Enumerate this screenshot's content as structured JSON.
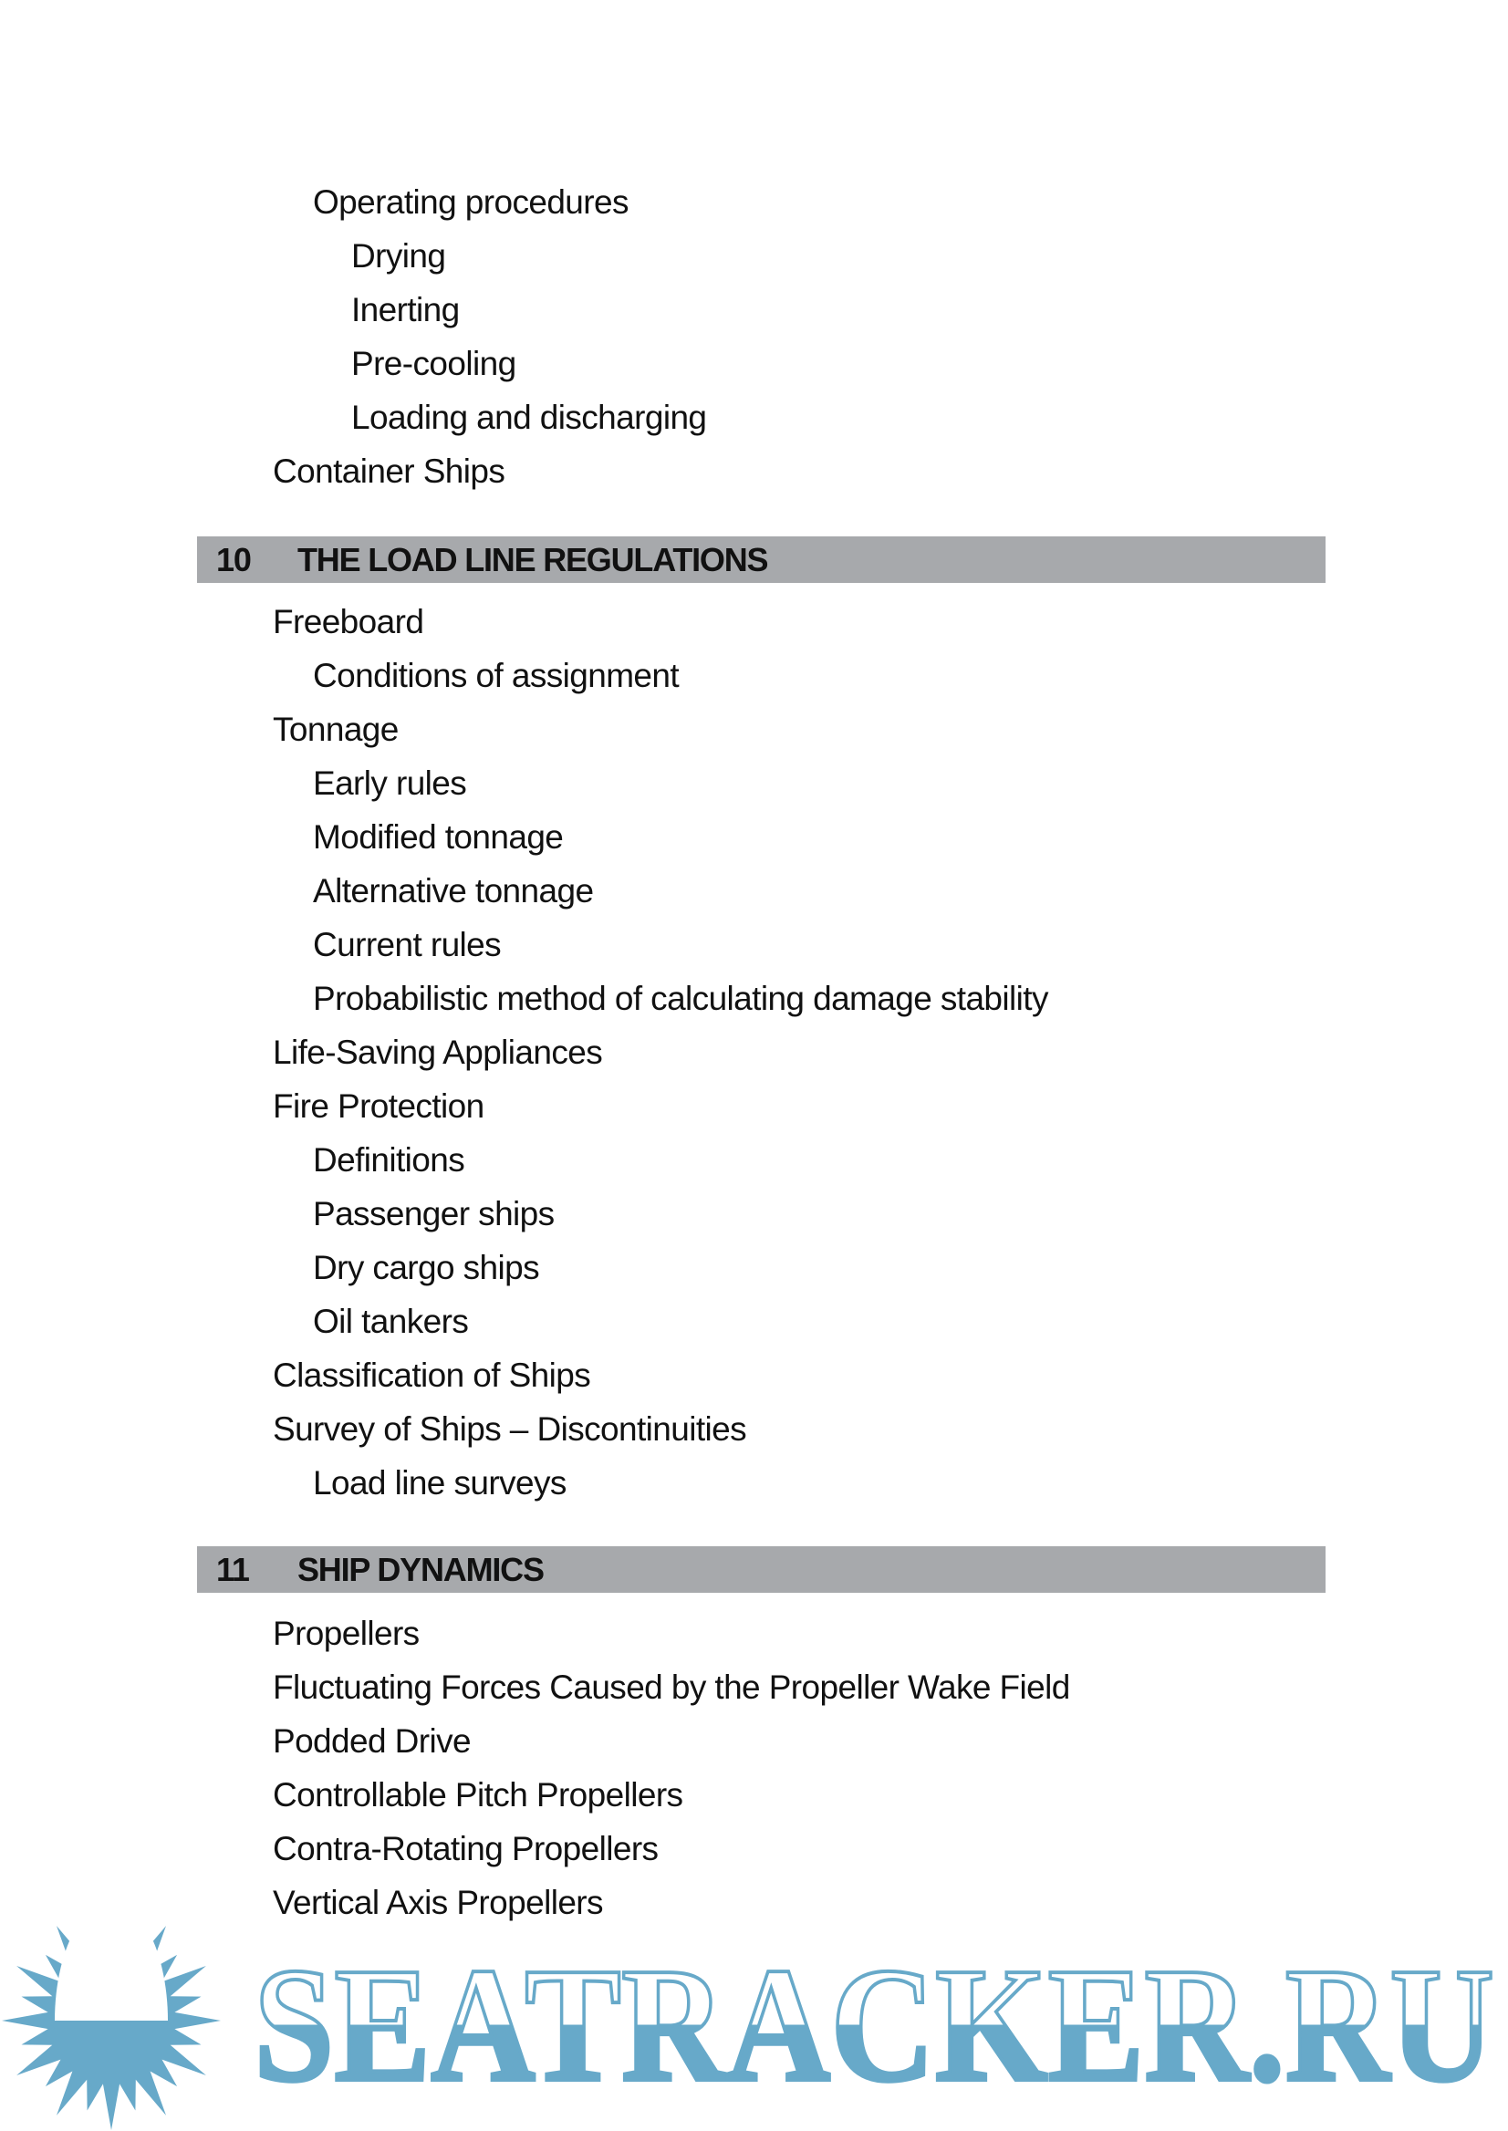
{
  "sections": [
    {
      "items": [
        {
          "level": 2,
          "text": "Operating procedures"
        },
        {
          "level": 3,
          "text": "Drying"
        },
        {
          "level": 3,
          "text": "Inerting"
        },
        {
          "level": 3,
          "text": "Pre-cooling"
        },
        {
          "level": 3,
          "text": "Loading and discharging"
        },
        {
          "level": 1,
          "text": "Container Ships"
        }
      ]
    },
    {
      "number": "10",
      "title": "THE LOAD LINE REGULATIONS",
      "items": [
        {
          "level": 1,
          "text": "Freeboard"
        },
        {
          "level": 2,
          "text": "Conditions of assignment"
        },
        {
          "level": 1,
          "text": "Tonnage"
        },
        {
          "level": 2,
          "text": "Early rules"
        },
        {
          "level": 2,
          "text": "Modified tonnage"
        },
        {
          "level": 2,
          "text": "Alternative tonnage"
        },
        {
          "level": 2,
          "text": "Current rules"
        },
        {
          "level": 2,
          "text": "Probabilistic method of calculating damage stability"
        },
        {
          "level": 1,
          "text": "Life-Saving Appliances"
        },
        {
          "level": 1,
          "text": "Fire Protection"
        },
        {
          "level": 2,
          "text": "Definitions"
        },
        {
          "level": 2,
          "text": "Passenger ships"
        },
        {
          "level": 2,
          "text": "Dry cargo ships"
        },
        {
          "level": 2,
          "text": "Oil tankers"
        },
        {
          "level": 1,
          "text": "Classification of Ships"
        },
        {
          "level": 1,
          "text": "Survey of Ships – Discontinuities"
        },
        {
          "level": 2,
          "text": "Load line surveys"
        }
      ]
    },
    {
      "number": "11",
      "title": "SHIP DYNAMICS",
      "items": [
        {
          "level": 1,
          "text": "Propellers"
        },
        {
          "level": 1,
          "text": "Fluctuating Forces Caused by the Propeller Wake Field"
        },
        {
          "level": 1,
          "text": "Podded Drive"
        },
        {
          "level": 1,
          "text": "Controllable Pitch Propellers"
        },
        {
          "level": 1,
          "text": "Contra-Rotating Propellers"
        },
        {
          "level": 1,
          "text": "Vertical Axis Propellers"
        }
      ]
    }
  ],
  "colors": {
    "section_bar": "#a7a9ac",
    "watermark": "#67a9c9"
  },
  "watermark": {
    "text": "SEATRACKER.RU",
    "icon": "sun-icon"
  }
}
